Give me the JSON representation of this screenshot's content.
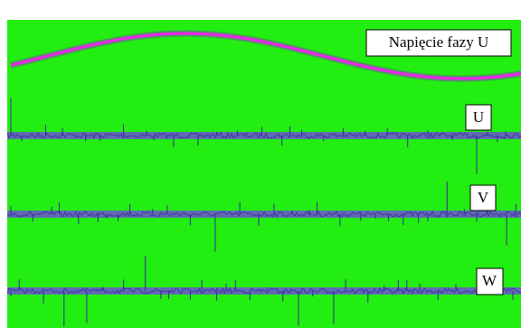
{
  "labels": {
    "phase_voltage": "Napięcie fazy U",
    "u": "U",
    "v": "V",
    "w": "W"
  }
}
